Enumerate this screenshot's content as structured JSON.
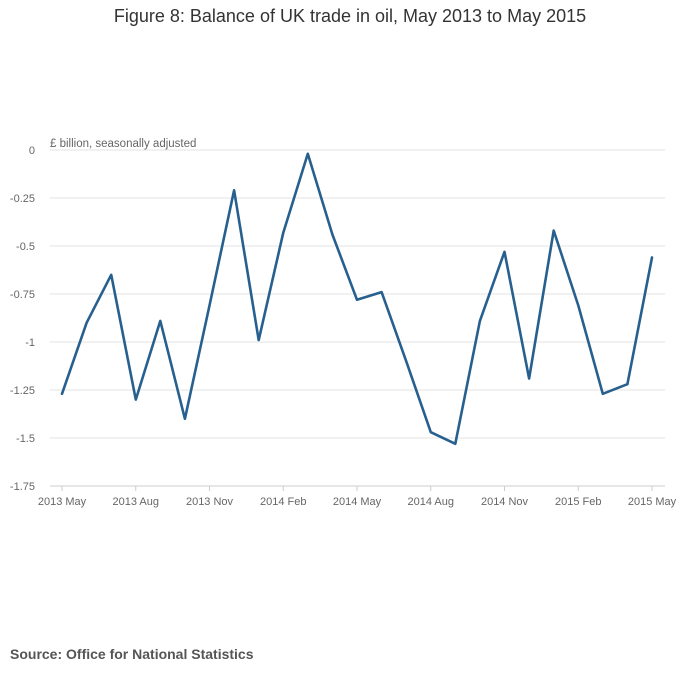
{
  "chart_data": {
    "type": "line",
    "title": "Figure 8: Balance of UK trade in oil, May 2013 to May 2015",
    "unit_label": "£ billion, seasonally adjusted",
    "xlabel": "",
    "ylabel": "",
    "x_tick_labels": [
      "2013 May",
      "2013 Aug",
      "2013 Nov",
      "2014 Feb",
      "2014 May",
      "2014 Aug",
      "2014 Nov",
      "2015 Feb",
      "2015 May"
    ],
    "y_ticks": [
      0,
      -0.25,
      -0.5,
      -0.75,
      -1,
      -1.25,
      -1.5,
      -1.75
    ],
    "y_tick_labels": [
      "0",
      "-0.25",
      "-0.5",
      "-0.75",
      "-1",
      "-1.25",
      "-1.5",
      "-1.75"
    ],
    "ylim": [
      -1.75,
      0
    ],
    "grid": true,
    "legend": "none",
    "series_color": "#27608e",
    "x": [
      "2013 May",
      "2013 Jun",
      "2013 Jul",
      "2013 Aug",
      "2013 Sep",
      "2013 Oct",
      "2013 Nov",
      "2013 Dec",
      "2014 Jan",
      "2014 Feb",
      "2014 Mar",
      "2014 Apr",
      "2014 May",
      "2014 Jun",
      "2014 Jul",
      "2014 Aug",
      "2014 Sep",
      "2014 Oct",
      "2014 Nov",
      "2014 Dec",
      "2015 Jan",
      "2015 Feb",
      "2015 Mar",
      "2015 Apr",
      "2015 May"
    ],
    "series": [
      {
        "values": [
          -1.27,
          -0.9,
          -0.65,
          -1.3,
          -0.89,
          -1.4,
          -0.81,
          -0.21,
          -0.99,
          -0.43,
          -0.02,
          -0.44,
          -0.78,
          -0.74,
          -1.1,
          -1.47,
          -1.53,
          -0.89,
          -0.53,
          -1.19,
          -0.42,
          -0.81,
          -1.27,
          -1.22,
          -0.56
        ]
      }
    ]
  },
  "source_text": "Source: Office for National Statistics"
}
